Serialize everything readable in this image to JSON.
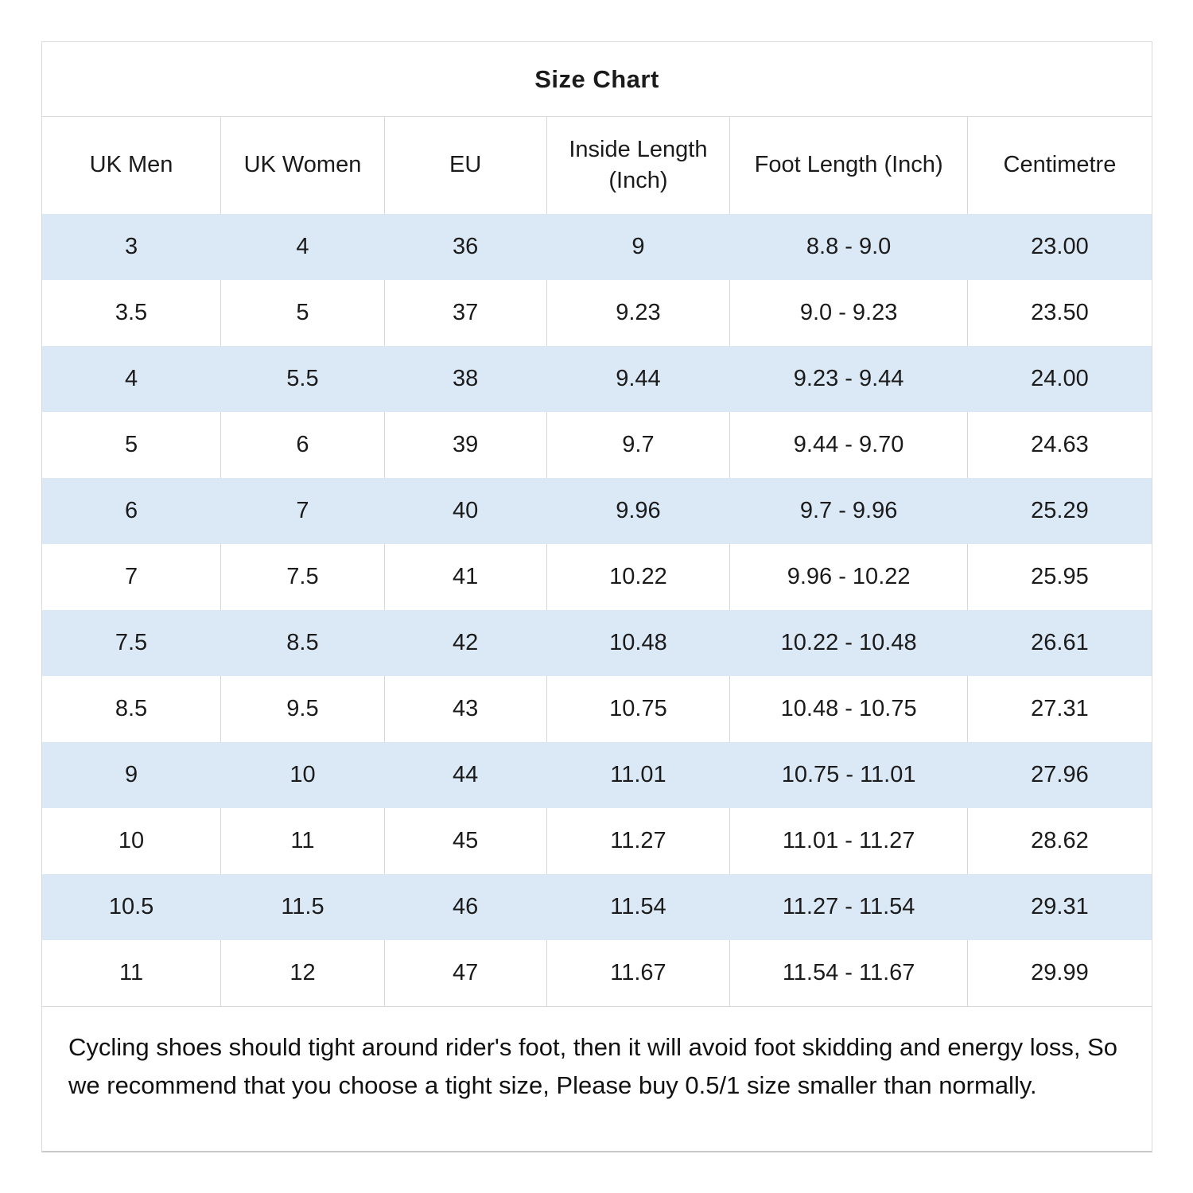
{
  "chart_data": {
    "type": "table",
    "title": "Size Chart",
    "columns": [
      "UK Men",
      "UK Women",
      "EU",
      "Inside Length (Inch)",
      "Foot Length (Inch)",
      "Centimetre"
    ],
    "rows": [
      [
        "3",
        "4",
        "36",
        "9",
        "8.8 - 9.0",
        "23.00"
      ],
      [
        "3.5",
        "5",
        "37",
        "9.23",
        "9.0 - 9.23",
        "23.50"
      ],
      [
        "4",
        "5.5",
        "38",
        "9.44",
        "9.23 - 9.44",
        "24.00"
      ],
      [
        "5",
        "6",
        "39",
        "9.7",
        "9.44 - 9.70",
        "24.63"
      ],
      [
        "6",
        "7",
        "40",
        "9.96",
        "9.7 - 9.96",
        "25.29"
      ],
      [
        "7",
        "7.5",
        "41",
        "10.22",
        "9.96 - 10.22",
        "25.95"
      ],
      [
        "7.5",
        "8.5",
        "42",
        "10.48",
        "10.22 - 10.48",
        "26.61"
      ],
      [
        "8.5",
        "9.5",
        "43",
        "10.75",
        "10.48 - 10.75",
        "27.31"
      ],
      [
        "9",
        "10",
        "44",
        "11.01",
        "10.75 - 11.01",
        "27.96"
      ],
      [
        "10",
        "11",
        "45",
        "11.27",
        "11.01 - 11.27",
        "28.62"
      ],
      [
        "10.5",
        "11.5",
        "46",
        "11.54",
        "11.27 - 11.54",
        "29.31"
      ],
      [
        "11",
        "12",
        "47",
        "11.67",
        "11.54 - 11.67",
        "29.99"
      ]
    ],
    "note": "Cycling shoes should tight around rider's foot, then it will avoid foot skidding and energy loss, So we recommend that you choose a tight size, Please buy 0.5/1 size smaller than normally.",
    "layout": {
      "alternating_row_color": "#dbe8f5",
      "border_color": "#d6d6d6",
      "text_color": "#1b1b1b",
      "grid": "vertical lines on white rows only, alternating blue row bands"
    }
  }
}
